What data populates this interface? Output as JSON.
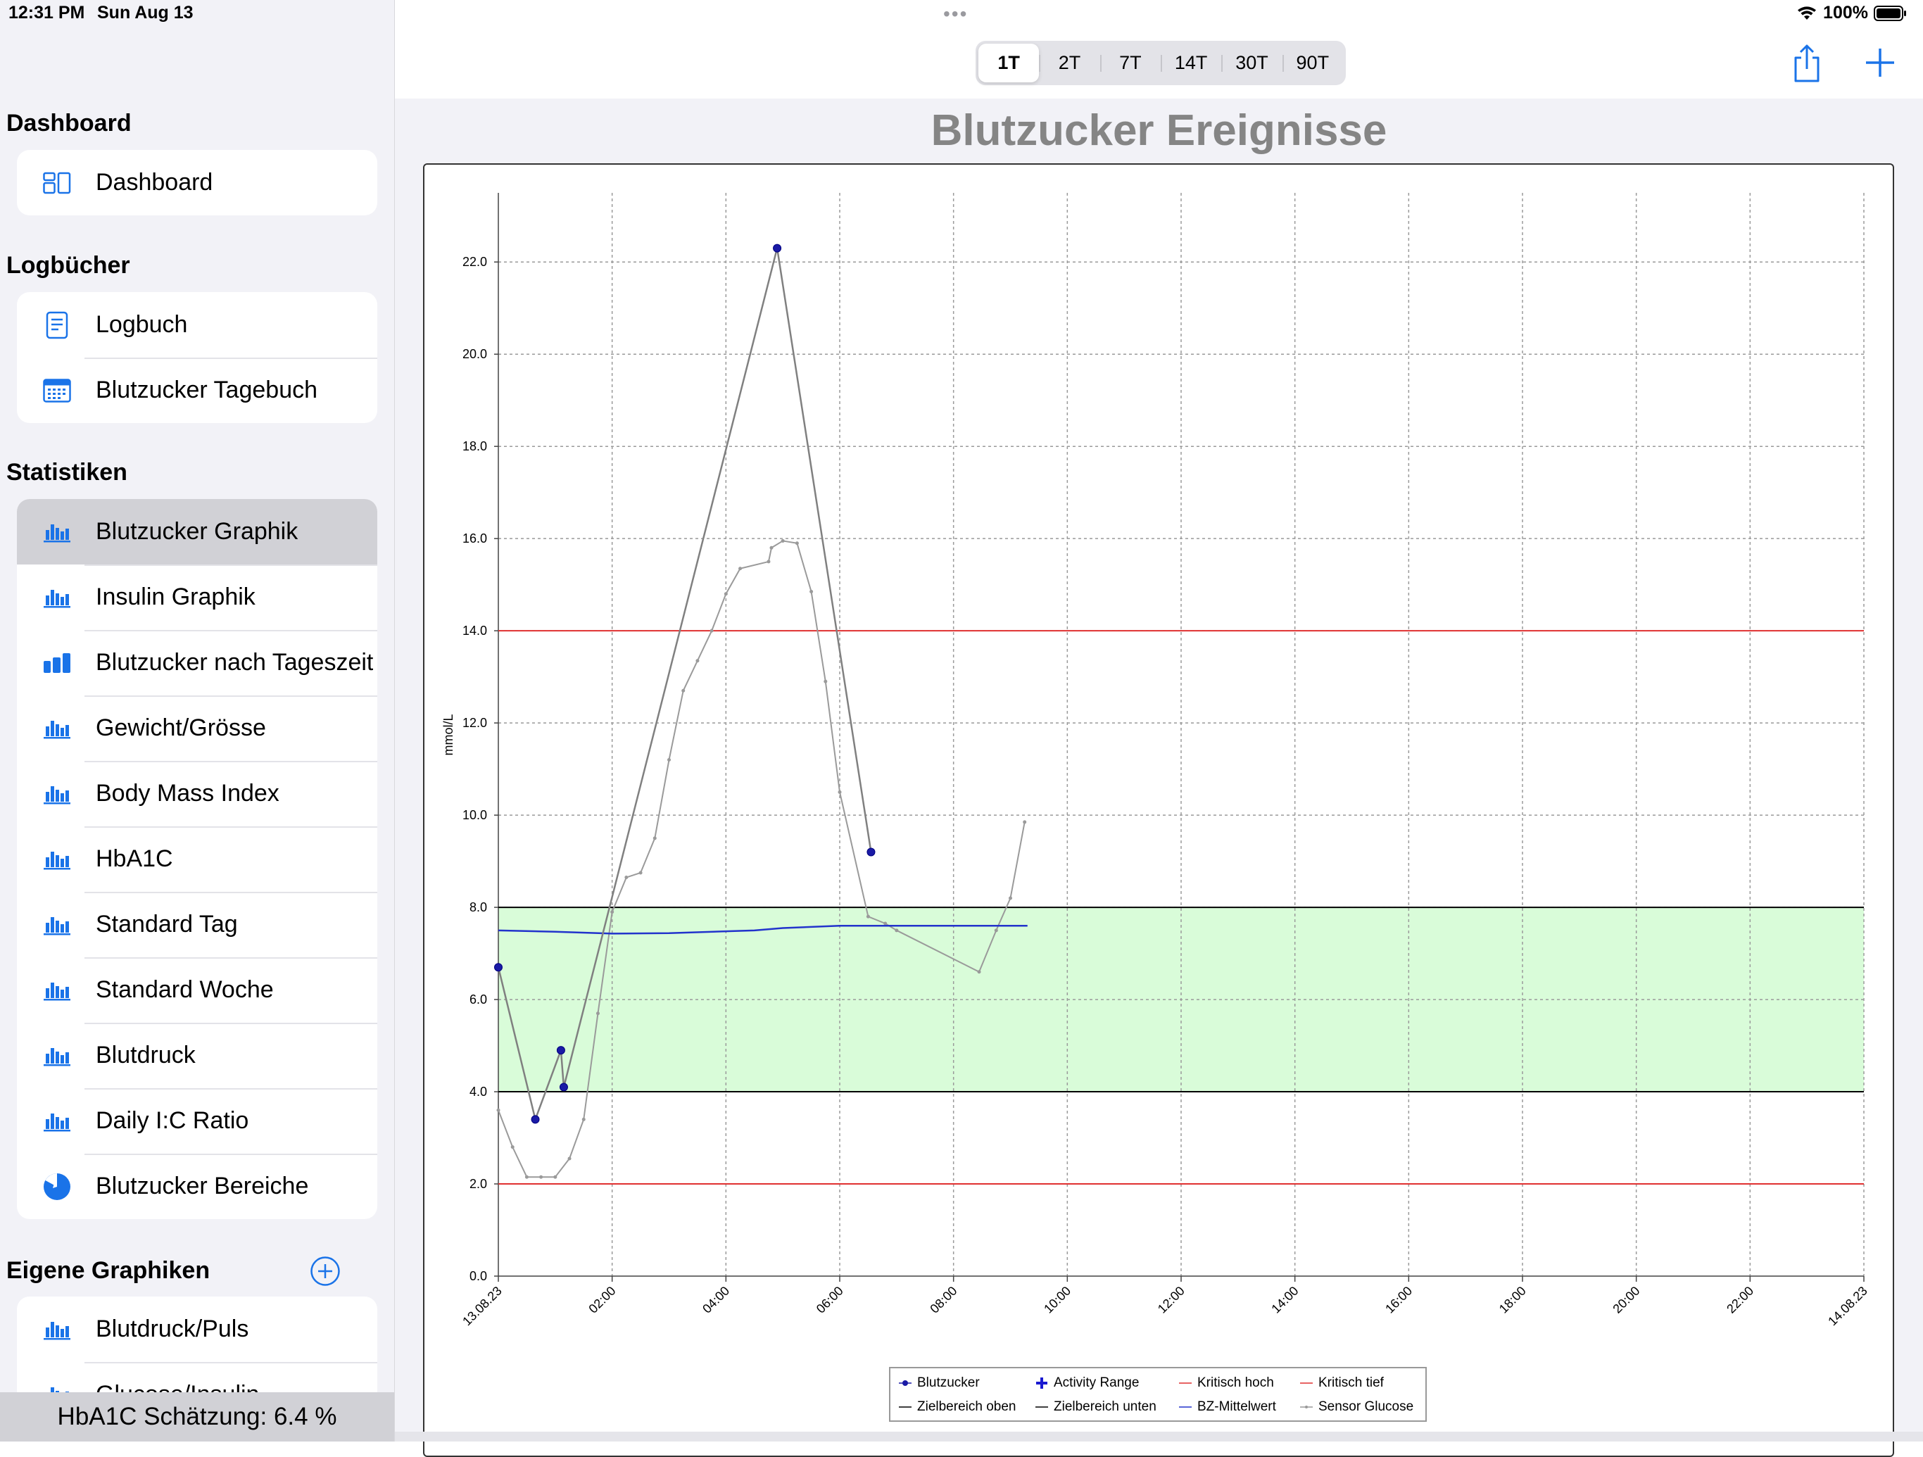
{
  "status_bar": {
    "time": "12:31 PM",
    "date": "Sun Aug 13",
    "battery": "100%"
  },
  "sidebar": {
    "sections": [
      {
        "title": "Dashboard",
        "items": [
          {
            "label": "Dashboard",
            "icon": "dashboard-icon"
          }
        ]
      },
      {
        "title": "Logbücher",
        "items": [
          {
            "label": "Logbuch",
            "icon": "logbook-icon"
          },
          {
            "label": "Blutzucker Tagebuch",
            "icon": "calendar-icon"
          }
        ]
      },
      {
        "title": "Statistiken",
        "items": [
          {
            "label": "Blutzucker Graphik",
            "icon": "bar-chart-icon",
            "selected": true
          },
          {
            "label": "Insulin Graphik",
            "icon": "bar-chart-icon"
          },
          {
            "label": "Blutzucker nach Tageszeit",
            "icon": "bar-chart-filled-icon"
          },
          {
            "label": "Gewicht/Grösse",
            "icon": "bar-chart-icon"
          },
          {
            "label": "Body Mass Index",
            "icon": "bar-chart-icon"
          },
          {
            "label": "HbA1C",
            "icon": "bar-chart-icon"
          },
          {
            "label": "Standard Tag",
            "icon": "bar-chart-icon"
          },
          {
            "label": "Standard Woche",
            "icon": "bar-chart-icon"
          },
          {
            "label": "Blutdruck",
            "icon": "bar-chart-icon"
          },
          {
            "label": "Daily I:C Ratio",
            "icon": "bar-chart-icon"
          },
          {
            "label": "Blutzucker Bereiche",
            "icon": "pie-chart-icon"
          }
        ]
      },
      {
        "title": "Eigene Graphiken",
        "items": [
          {
            "label": "Blutdruck/Puls",
            "icon": "bar-chart-icon"
          },
          {
            "label": "Glucose/Insulin",
            "icon": "bar-chart-icon"
          }
        ]
      }
    ],
    "hba1c_estimate": "HbA1C Schätzung: 6.4 %"
  },
  "toolbar": {
    "segments": [
      "1T",
      "2T",
      "7T",
      "14T",
      "30T",
      "90T"
    ],
    "selected_segment": "1T",
    "accent_color": "#1a73e8"
  },
  "chart_data": {
    "type": "line",
    "title": "Blutzucker Ereignisse",
    "ylabel": "mmol/L",
    "xlabel": "",
    "ylim": [
      0,
      23.5
    ],
    "xlim_hours": [
      0,
      24
    ],
    "y_ticks": [
      "0.0",
      "2.0",
      "4.0",
      "6.0",
      "8.0",
      "10.0",
      "12.0",
      "14.0",
      "16.0",
      "18.0",
      "20.0",
      "22.0"
    ],
    "x_ticks": [
      "13.08.23",
      "02:00",
      "04:00",
      "06:00",
      "08:00",
      "10:00",
      "12:00",
      "14:00",
      "16:00",
      "18:00",
      "20:00",
      "22:00",
      "14.08.23"
    ],
    "grid": true,
    "legend_position": "bottom",
    "target_range": [
      4.0,
      8.0
    ],
    "critical_high": 14.0,
    "critical_low": 2.0,
    "series": [
      {
        "name": "Blutzucker",
        "color": "#1a1aa6",
        "x_hours": [
          0.0,
          0.65,
          1.1,
          1.15,
          4.9,
          6.55
        ],
        "values": [
          6.7,
          3.4,
          4.9,
          4.1,
          22.3,
          9.2
        ]
      },
      {
        "name": "Sensor Glucose",
        "color": "#999999",
        "x_hours": [
          0.0,
          0.25,
          0.5,
          0.75,
          1.0,
          1.25,
          1.5,
          1.75,
          2.0,
          2.25,
          2.5,
          2.75,
          3.0,
          3.25,
          3.5,
          3.75,
          4.0,
          4.25,
          4.75,
          4.8,
          5.0,
          5.25,
          5.5,
          5.75,
          6.0,
          6.5,
          6.8,
          7.0,
          8.45,
          8.75,
          9.0,
          9.25
        ],
        "values": [
          3.6,
          2.8,
          2.15,
          2.15,
          2.15,
          2.55,
          3.4,
          5.7,
          7.9,
          8.65,
          8.75,
          9.5,
          11.2,
          12.7,
          13.35,
          14.0,
          14.8,
          15.35,
          15.5,
          15.8,
          15.95,
          15.9,
          14.85,
          12.9,
          10.5,
          7.8,
          7.65,
          7.5,
          6.6,
          7.5,
          8.2,
          9.85
        ]
      },
      {
        "name": "BZ-Mittelwert",
        "color": "#2233cc",
        "x_hours": [
          0.0,
          1.0,
          2.0,
          3.0,
          4.0,
          4.5,
          5.0,
          6.0,
          7.0,
          8.0,
          9.3
        ],
        "values": [
          7.5,
          7.47,
          7.43,
          7.44,
          7.48,
          7.5,
          7.55,
          7.6,
          7.6,
          7.6,
          7.6
        ]
      }
    ],
    "legend": [
      {
        "label": "Blutzucker",
        "symbol": "dot",
        "color": "#1a1aa6"
      },
      {
        "label": "Activity Range",
        "symbol": "plus",
        "color": "#1a1ad0"
      },
      {
        "label": "Kritisch hoch",
        "symbol": "line",
        "color": "#e03030"
      },
      {
        "label": "Kritisch tief",
        "symbol": "line",
        "color": "#e03030"
      },
      {
        "label": "Zielbereich oben",
        "symbol": "line",
        "color": "#000000"
      },
      {
        "label": "Zielbereich unten",
        "symbol": "line",
        "color": "#000000"
      },
      {
        "label": "BZ-Mittelwert",
        "symbol": "line",
        "color": "#2233cc"
      },
      {
        "label": "Sensor Glucose",
        "symbol": "dotline",
        "color": "#999999"
      }
    ]
  }
}
